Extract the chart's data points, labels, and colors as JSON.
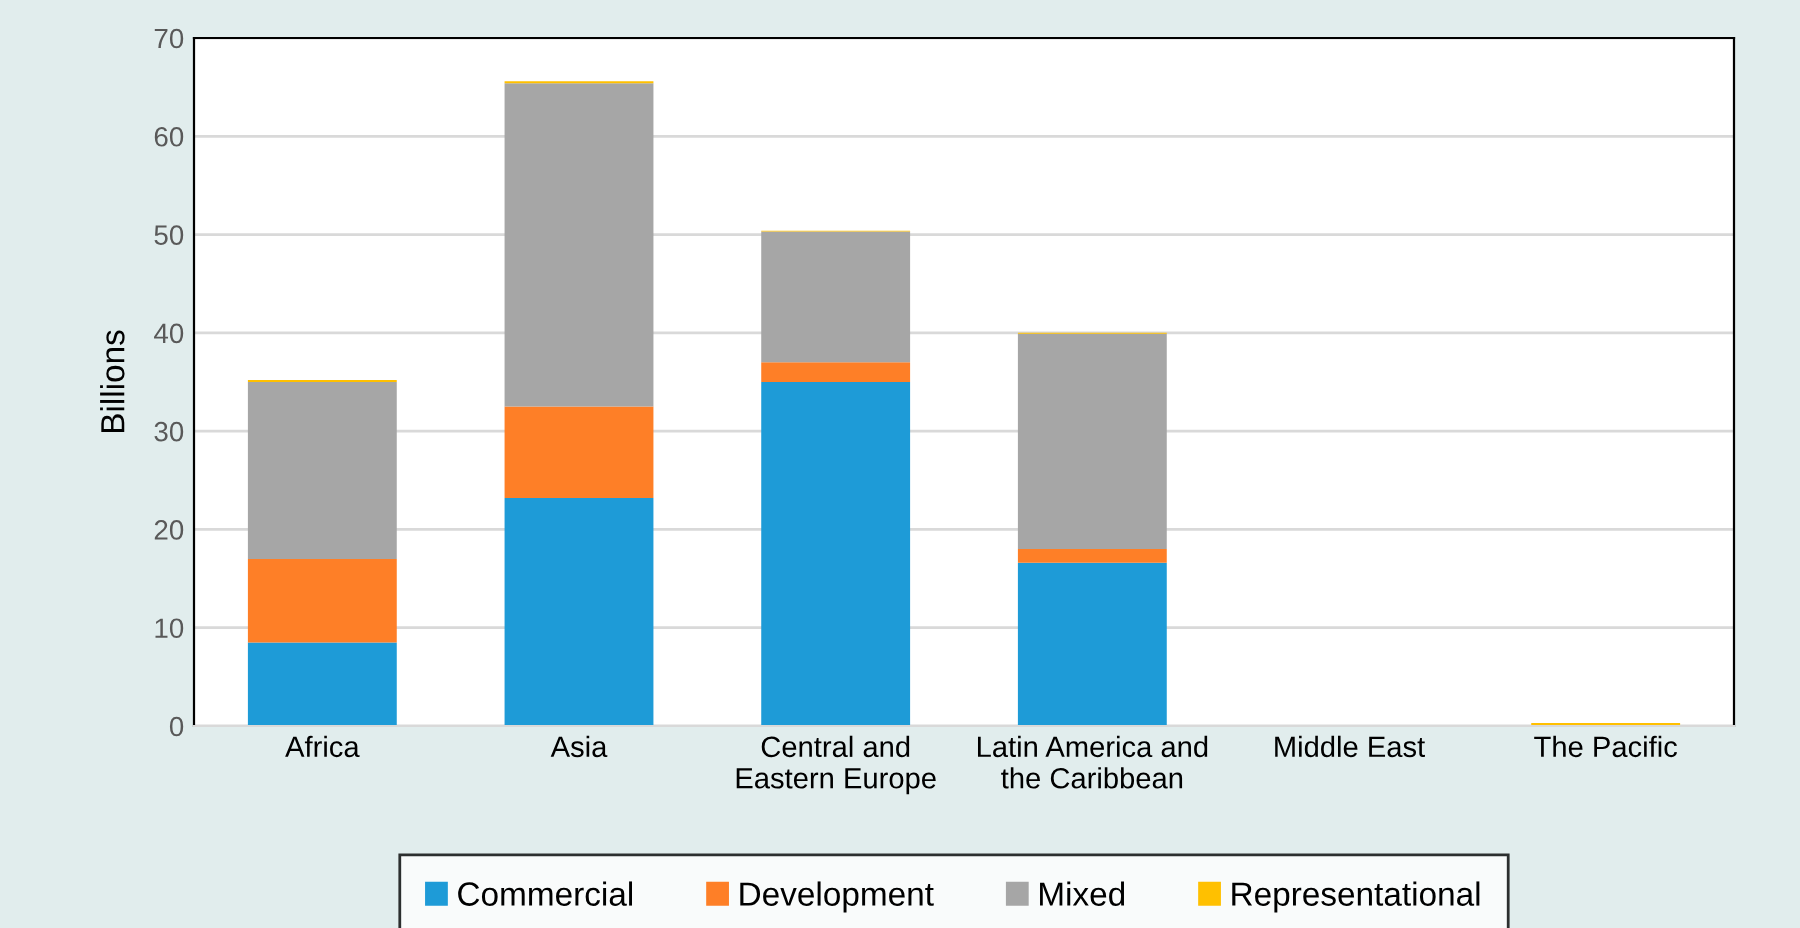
{
  "chart_data": {
    "type": "bar",
    "stacked": true,
    "ylabel": "Billions",
    "categories": [
      "Africa",
      "Asia",
      "Central and\nEastern Europe",
      "Latin America and\nthe Caribbean",
      "Middle East",
      "The Pacific"
    ],
    "series": [
      {
        "name": "Commercial",
        "color": "#1e9bd7",
        "values": [
          8.5,
          23.2,
          35,
          16.6,
          0,
          0
        ]
      },
      {
        "name": "Development",
        "color": "#fe7f27",
        "values": [
          8.5,
          9.3,
          2,
          1.4,
          0,
          0
        ]
      },
      {
        "name": "Mixed",
        "color": "#a6a6a6",
        "values": [
          18,
          32.9,
          13.3,
          21.9,
          0,
          0
        ]
      },
      {
        "name": "Representational",
        "color": "#ffc000",
        "values": [
          0.2,
          0.2,
          0.1,
          0.1,
          0,
          0.3
        ]
      }
    ],
    "ylim": [
      0,
      70
    ],
    "yticks": [
      0,
      10,
      20,
      30,
      40,
      50,
      60,
      70
    ],
    "grid": "y",
    "legend": "bottom"
  }
}
